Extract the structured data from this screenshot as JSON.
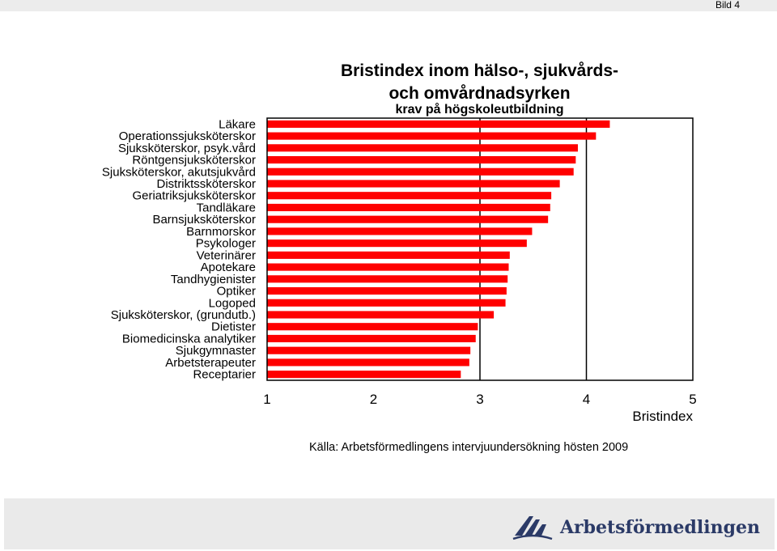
{
  "header": {
    "bild_label": "Bild 4"
  },
  "title_line1": "Bristindex inom hälso-, sjukvårds-",
  "title_line2": "och omvårdnadsyrken",
  "subtitle": "krav på högskoleutbildning",
  "source": "Källa: Arbetsförmedlingens intervjuundersökning hösten 2009",
  "brand": {
    "name": "Arbetsförmedlingen",
    "color": "#2b3a67"
  },
  "chart_data": {
    "type": "bar",
    "orientation": "horizontal",
    "xlabel": "Bristindex",
    "xlim": [
      1,
      5
    ],
    "xticks": [
      1,
      2,
      3,
      4,
      5
    ],
    "grid": "vertical lines at 3 and 4",
    "bar_color": "#ff0000",
    "categories": [
      "Läkare",
      "Operationssjuksköterskor",
      "Sjuksköterskor, psyk.vård",
      "Röntgensjuksköterskor",
      "Sjuksköterskor, akutsjukvård",
      "Distriktssköterskor",
      "Geriatriksjuksköterskor",
      "Tandläkare",
      "Barnsjuksköterskor",
      "Barnmorskor",
      "Psykologer",
      "Veterinärer",
      "Apotekare",
      "Tandhygienister",
      "Optiker",
      "Logoped",
      "Sjuksköterskor, (grundutb.)",
      "Dietister",
      "Biomedicinska analytiker",
      "Sjukgymnaster",
      "Arbetsterapeuter",
      "Receptarier"
    ],
    "values": [
      4.22,
      4.09,
      3.92,
      3.9,
      3.88,
      3.75,
      3.67,
      3.66,
      3.64,
      3.49,
      3.44,
      3.28,
      3.27,
      3.26,
      3.25,
      3.24,
      3.13,
      2.98,
      2.96,
      2.91,
      2.9,
      2.82
    ]
  }
}
